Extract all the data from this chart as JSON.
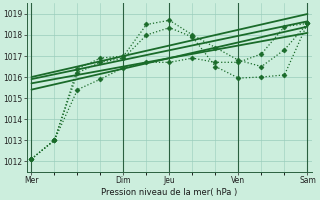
{
  "background_color": "#cceedd",
  "grid_color": "#99ccbb",
  "line_color": "#1a6b2a",
  "ylim": [
    1011.5,
    1019.5
  ],
  "yticks": [
    1012,
    1013,
    1014,
    1015,
    1016,
    1017,
    1018,
    1019
  ],
  "xlabel": "Pression niveau de la mer( hPa )",
  "xtick_labels": [
    "Mer",
    "Dim",
    "Jeu",
    "Ven",
    "Sam"
  ],
  "xtick_positions": [
    0,
    4,
    6,
    9,
    12
  ],
  "vline_positions": [
    0,
    4,
    6,
    9,
    12
  ],
  "total_points": 13,
  "series": [
    {
      "x": [
        0,
        1,
        2,
        3,
        4,
        5,
        6,
        7,
        8,
        9,
        10,
        11,
        12
      ],
      "y": [
        1012.1,
        1013.0,
        1015.4,
        1015.9,
        1016.45,
        1016.7,
        1016.7,
        1016.9,
        1016.7,
        1016.7,
        1017.1,
        1018.4,
        1018.55
      ],
      "marker": "D",
      "markersize": 2.5,
      "linewidth": 0.9,
      "dotted": true
    },
    {
      "x": [
        0,
        1,
        2,
        3,
        4,
        5,
        6,
        7,
        8,
        9,
        10,
        11,
        12
      ],
      "y": [
        1012.1,
        1013.0,
        1016.2,
        1016.7,
        1016.9,
        1018.0,
        1018.35,
        1017.9,
        1016.5,
        1015.95,
        1016.0,
        1016.1,
        1018.55
      ],
      "marker": "D",
      "markersize": 2.5,
      "linewidth": 0.9,
      "dotted": true
    },
    {
      "x": [
        0,
        1,
        2,
        3,
        4,
        5,
        6,
        7,
        8,
        9,
        10,
        11,
        12
      ],
      "y": [
        1012.1,
        1013.0,
        1016.4,
        1016.9,
        1017.0,
        1018.5,
        1018.7,
        1018.0,
        1017.4,
        1016.8,
        1016.5,
        1017.3,
        1018.55
      ],
      "marker": "D",
      "markersize": 2.5,
      "linewidth": 0.9,
      "dotted": true
    },
    {
      "x": [
        0,
        12
      ],
      "y": [
        1015.4,
        1018.4
      ],
      "marker": null,
      "markersize": 0,
      "linewidth": 1.3,
      "dotted": false
    },
    {
      "x": [
        0,
        12
      ],
      "y": [
        1015.7,
        1018.1
      ],
      "marker": null,
      "markersize": 0,
      "linewidth": 1.3,
      "dotted": false
    },
    {
      "x": [
        0,
        12
      ],
      "y": [
        1015.9,
        1018.65
      ],
      "marker": null,
      "markersize": 0,
      "linewidth": 1.3,
      "dotted": false
    },
    {
      "x": [
        0,
        12
      ],
      "y": [
        1016.0,
        1019.0
      ],
      "marker": null,
      "markersize": 0,
      "linewidth": 1.3,
      "dotted": false
    }
  ]
}
